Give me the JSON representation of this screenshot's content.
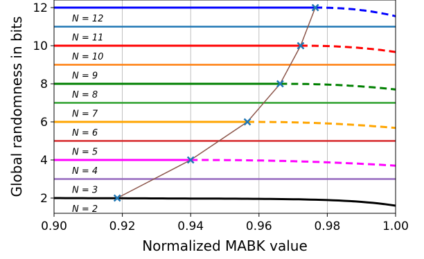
{
  "chart_data": {
    "type": "line",
    "xlabel": "Normalized MABK value",
    "ylabel": "Global randomness in bits",
    "xlim": [
      0.9,
      1.0
    ],
    "ylim": [
      1.2,
      12.4
    ],
    "x_ticks": [
      0.9,
      0.92,
      0.94,
      0.96,
      0.98,
      1.0
    ],
    "x_tick_labels": [
      "0.90",
      "0.92",
      "0.94",
      "0.96",
      "0.98",
      "1.00"
    ],
    "y_ticks": [
      2,
      4,
      6,
      8,
      10,
      12
    ],
    "y_tick_labels": [
      "2",
      "4",
      "6",
      "8",
      "10",
      "12"
    ],
    "grid": "vertical",
    "series": [
      {
        "name": "N = 2",
        "color": "#000000",
        "level": 2,
        "style": "solid",
        "solid_to": 1.0,
        "end_drop": 0.4
      },
      {
        "name": "N = 3",
        "color": "#9467bd",
        "level": 3,
        "style": "flat"
      },
      {
        "name": "N = 4",
        "color": "#ff00ff",
        "level": 4,
        "style": "solid-dashed",
        "solid_to": 0.94,
        "end_drop": 0.3
      },
      {
        "name": "N = 5",
        "color": "#d62728",
        "level": 5,
        "style": "flat"
      },
      {
        "name": "N = 6",
        "color": "#ffa500",
        "level": 6,
        "style": "solid-dashed",
        "solid_to": 0.9566,
        "end_drop": 0.32
      },
      {
        "name": "N = 7",
        "color": "#2ca02c",
        "level": 7,
        "style": "flat"
      },
      {
        "name": "N = 8",
        "color": "#008000",
        "level": 8,
        "style": "solid-dashed",
        "solid_to": 0.9662,
        "end_drop": 0.3
      },
      {
        "name": "N = 9",
        "color": "#ff7f0e",
        "level": 9,
        "style": "flat"
      },
      {
        "name": "N = 10",
        "color": "#ff0000",
        "level": 10,
        "style": "solid-dashed",
        "solid_to": 0.9722,
        "end_drop": 0.33
      },
      {
        "name": "N = 11",
        "color": "#1f77b4",
        "level": 11,
        "style": "flat"
      },
      {
        "name": "N = 12",
        "color": "#0000ff",
        "level": 12,
        "style": "solid-dashed",
        "solid_to": 0.9765,
        "end_drop": 0.45
      }
    ],
    "threshold_curve": {
      "color": "#8c564b",
      "marker_color": "#1f77b4",
      "points": [
        {
          "x": 0.9185,
          "y": 2
        },
        {
          "x": 0.94,
          "y": 4
        },
        {
          "x": 0.9566,
          "y": 6
        },
        {
          "x": 0.9662,
          "y": 8
        },
        {
          "x": 0.9722,
          "y": 10
        },
        {
          "x": 0.9765,
          "y": 12
        }
      ]
    }
  }
}
